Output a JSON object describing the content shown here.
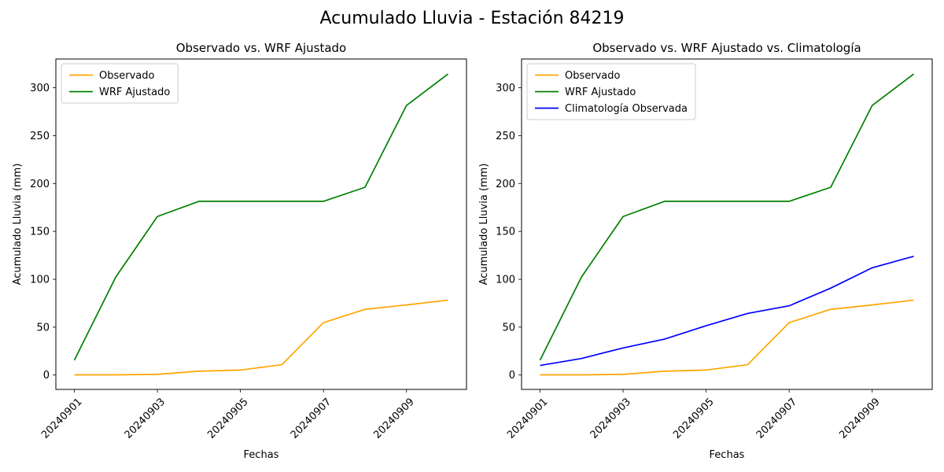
{
  "figure": {
    "suptitle": "Acumulado Lluvia - Estación 84219"
  },
  "chart_data": [
    {
      "type": "line",
      "title": "Observado vs. WRF Ajustado",
      "xlabel": "Fechas",
      "ylabel": "Acumulado Lluvia (mm)",
      "x": [
        "20240901",
        "20240902",
        "20240903",
        "20240904",
        "20240905",
        "20240906",
        "20240907",
        "20240908",
        "20240909",
        "20240910"
      ],
      "xticks": [
        "20240901",
        "20240903",
        "20240905",
        "20240907",
        "20240909"
      ],
      "yticks": [
        0,
        50,
        100,
        150,
        200,
        250,
        300
      ],
      "ylim": [
        -15,
        330
      ],
      "legend": "upper left",
      "grid": false,
      "series": [
        {
          "name": "Observado",
          "color": "#ffa500",
          "values": [
            0.2,
            0.2,
            0.7,
            4.0,
            5.2,
            10.8,
            54.7,
            68.6,
            73.2,
            78.2
          ]
        },
        {
          "name": "WRF Ajustado",
          "color": "#008000",
          "values": [
            15.5,
            102.5,
            165.5,
            181.4,
            181.4,
            181.4,
            181.4,
            196.0,
            281.5,
            314.3
          ]
        }
      ]
    },
    {
      "type": "line",
      "title": "Observado vs. WRF Ajustado vs. Climatología",
      "xlabel": "Fechas",
      "ylabel": "Acumulado Lluvia (mm)",
      "x": [
        "20240901",
        "20240902",
        "20240903",
        "20240904",
        "20240905",
        "20240906",
        "20240907",
        "20240908",
        "20240909",
        "20240910"
      ],
      "xticks": [
        "20240901",
        "20240903",
        "20240905",
        "20240907",
        "20240909"
      ],
      "yticks": [
        0,
        50,
        100,
        150,
        200,
        250,
        300
      ],
      "ylim": [
        -15,
        330
      ],
      "legend": "upper left",
      "grid": false,
      "series": [
        {
          "name": "Observado",
          "color": "#ffa500",
          "values": [
            0.2,
            0.2,
            0.7,
            4.0,
            5.2,
            10.8,
            54.7,
            68.6,
            73.2,
            78.2
          ]
        },
        {
          "name": "WRF Ajustado",
          "color": "#008000",
          "values": [
            15.5,
            102.5,
            165.5,
            181.4,
            181.4,
            181.4,
            181.4,
            196.0,
            281.5,
            314.3
          ]
        },
        {
          "name": "Climatología Observada",
          "color": "#0000ff",
          "values": [
            10.0,
            17.3,
            28.3,
            37.5,
            51.5,
            64.3,
            72.3,
            90.7,
            112.0,
            124.0
          ]
        }
      ]
    }
  ]
}
